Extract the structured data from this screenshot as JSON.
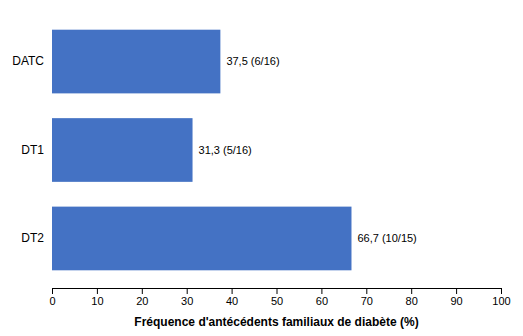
{
  "chart_data": {
    "type": "bar",
    "orientation": "horizontal",
    "categories": [
      "DT2",
      "DT1",
      "DATC"
    ],
    "values": [
      66.7,
      31.3,
      37.5
    ],
    "value_labels": [
      "66,7 (10/15)",
      "31,3 (5/16)",
      "37,5 (6/16)"
    ],
    "data_labels": true,
    "color": "#4472C4",
    "xlabel": "Fréquence d'antécédents familiaux de diabète (%)",
    "xlim": [
      0,
      100
    ],
    "xticks": [
      0,
      10,
      20,
      30,
      40,
      50,
      60,
      70,
      80,
      90,
      100
    ],
    "grid": false
  }
}
